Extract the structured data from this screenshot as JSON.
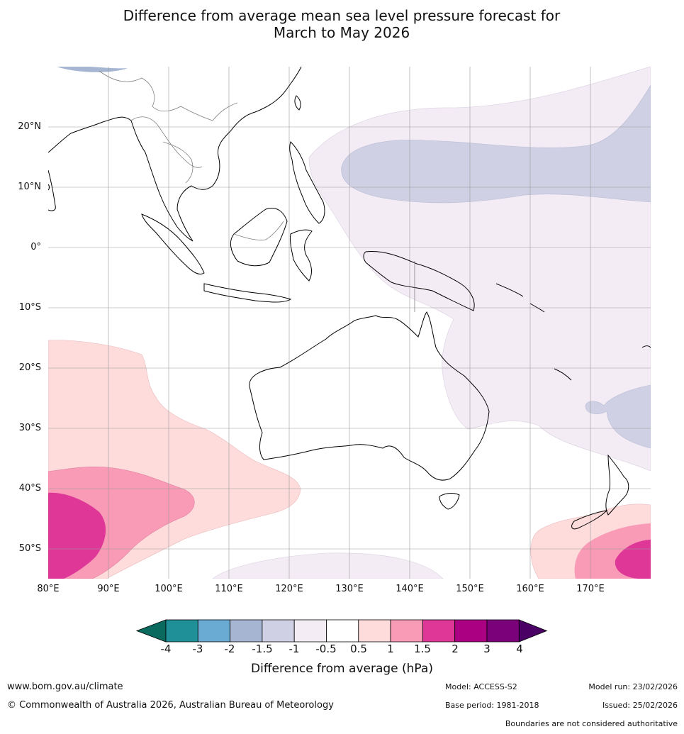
{
  "title": {
    "line1": "Difference from average mean sea level pressure forecast for",
    "line2": "March to May 2026"
  },
  "axes": {
    "lat_labels": [
      "20°N",
      "10°N",
      "0°",
      "10°S",
      "20°S",
      "30°S",
      "40°S",
      "50°S"
    ],
    "lon_labels": [
      "80°E",
      "90°E",
      "100°E",
      "110°E",
      "120°E",
      "130°E",
      "140°E",
      "150°E",
      "160°E",
      "170°E"
    ],
    "lon_range": [
      80,
      180
    ],
    "lat_range": [
      -55,
      30
    ]
  },
  "colorbar": {
    "title": "Difference from average (hPa)",
    "tick_labels": [
      "-4",
      "-3",
      "-2",
      "-1.5",
      "-1",
      "-0.5",
      "0.5",
      "1",
      "1.5",
      "2",
      "3",
      "4"
    ],
    "colors": [
      "#0b6a5e",
      "#1f9097",
      "#69abd2",
      "#a6b6d2",
      "#cfd0e3",
      "#f4ecf5",
      "#ffffff",
      "#fddcdb",
      "#f99bb7",
      "#df3798",
      "#ab0082",
      "#7a017a",
      "#4b0065"
    ]
  },
  "footer": {
    "website": "www.bom.gov.au/climate",
    "copyright": "© Commonwealth of Australia 2026, Australian Bureau of Meteorology",
    "model": "Model: ACCESS-S2",
    "base_period": "Base period: 1981-2018",
    "model_run": "Model run: 23/02/2026",
    "issued": "Issued: 25/02/2026",
    "disclaimer": "Boundaries are not considered authoritative"
  }
}
